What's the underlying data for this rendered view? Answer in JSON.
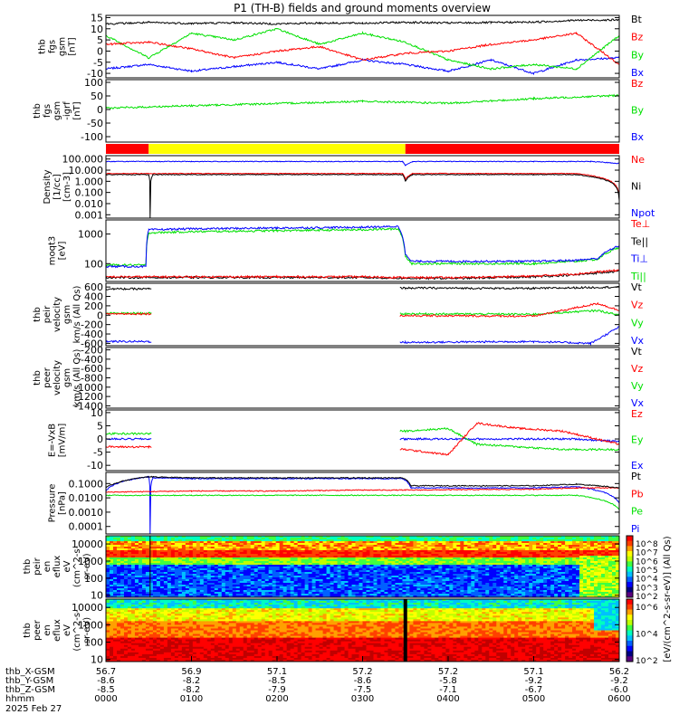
{
  "title": "P1 (TH-B) fields and ground moments overview",
  "colors": {
    "black": "#000000",
    "red": "#ff0000",
    "green": "#00e000",
    "blue": "#0000ff",
    "yellow": "#ffff00",
    "bg": "#ffffff"
  },
  "chart_data": [
    {
      "type": "line",
      "ylabel": [
        "thb",
        "fgs",
        "gsm",
        "[nT]"
      ],
      "ylim": [
        -12,
        16
      ],
      "yticks": [
        "15",
        "10",
        "5",
        "0",
        "-5",
        "-10"
      ],
      "ytick_values": [
        15,
        10,
        5,
        0,
        -5,
        -10
      ],
      "legend": [
        {
          "label": "Bt",
          "color": "#000000"
        },
        {
          "label": "Bz",
          "color": "#ff0000"
        },
        {
          "label": "By",
          "color": "#00e000"
        },
        {
          "label": "Bx",
          "color": "#0000ff"
        }
      ],
      "series": [
        {
          "name": "Bt",
          "color": "#000000",
          "x": [
            0,
            30,
            60,
            90,
            120,
            150,
            180,
            210,
            240,
            270,
            300,
            330,
            360
          ],
          "y": [
            12.2,
            12.8,
            12.4,
            12.7,
            12.2,
            12.6,
            12.5,
            12.9,
            12.6,
            12.8,
            13.0,
            13.8,
            14.0
          ]
        },
        {
          "name": "Bz",
          "color": "#ff0000",
          "x": [
            0,
            30,
            60,
            90,
            120,
            150,
            180,
            210,
            240,
            270,
            300,
            330,
            360
          ],
          "y": [
            3,
            4,
            1,
            -3,
            0,
            2,
            -4,
            -1,
            0,
            3,
            5,
            8,
            -6
          ]
        },
        {
          "name": "By",
          "color": "#00e000",
          "x": [
            0,
            30,
            60,
            90,
            120,
            150,
            180,
            210,
            240,
            270,
            300,
            330,
            360
          ],
          "y": [
            7,
            -3,
            8,
            5,
            10,
            3,
            8,
            4,
            -4,
            -8,
            -6,
            -8,
            7
          ]
        },
        {
          "name": "Bx",
          "color": "#0000ff",
          "x": [
            0,
            30,
            60,
            90,
            120,
            150,
            180,
            210,
            240,
            270,
            300,
            330,
            360
          ],
          "y": [
            -8,
            -6,
            -9,
            -7,
            -5,
            -8,
            -4,
            -6,
            -9,
            -4,
            -10,
            -4,
            -3
          ]
        }
      ]
    },
    {
      "type": "line",
      "ylabel": [
        "thb",
        "fgs",
        "gsm",
        "-igrf",
        "[nT]"
      ],
      "ylim": [
        -120,
        110
      ],
      "yticks": [
        "100",
        "50",
        "0",
        "-50",
        "-100"
      ],
      "ytick_values": [
        100,
        50,
        0,
        -50,
        -100
      ],
      "legend": [
        {
          "label": "Bz",
          "color": "#ff0000"
        },
        {
          "label": "By",
          "color": "#00e000"
        },
        {
          "label": "Bx",
          "color": "#0000ff"
        }
      ],
      "series": [
        {
          "name": "By",
          "color": "#00e000",
          "x": [
            0,
            60,
            120,
            180,
            240,
            300,
            360
          ],
          "y": [
            5,
            14,
            22,
            30,
            23,
            40,
            52
          ]
        }
      ]
    },
    {
      "type": "bar",
      "title": "region bar",
      "x_segments": [
        {
          "start": 0,
          "end": 30,
          "color": "#ff0000"
        },
        {
          "start": 30,
          "end": 210,
          "color": "#ffff00"
        },
        {
          "start": 210,
          "end": 360,
          "color": "#ff0000"
        }
      ]
    },
    {
      "type": "line",
      "log": true,
      "ylabel": [
        "Density",
        "[1/cc]",
        "[cm-3]"
      ],
      "ylim": [
        0.0005,
        200
      ],
      "yticks": [
        "100.000",
        "10.000",
        "1.000",
        "0.100",
        "0.010",
        "0.001"
      ],
      "ytick_values": [
        100,
        10,
        1,
        0.1,
        0.01,
        0.001
      ],
      "legend": [
        {
          "label": "Ne",
          "color": "#ff0000"
        },
        {
          "label": "Ni",
          "color": "#000000"
        },
        {
          "label": "Npot",
          "color": "#0000ff"
        }
      ],
      "series": [
        {
          "name": "Ni",
          "color": "#000000",
          "x": [
            0,
            30,
            31,
            33,
            60,
            120,
            180,
            208,
            210,
            215,
            300,
            330,
            360
          ],
          "y": [
            4,
            4,
            0.0005,
            4,
            4,
            4,
            4,
            4,
            1,
            4,
            4,
            4,
            0.02
          ]
        },
        {
          "name": "Ne",
          "color": "#ff0000",
          "x": [
            0,
            60,
            120,
            180,
            208,
            210,
            215,
            300,
            330,
            360
          ],
          "y": [
            5,
            5,
            5,
            5,
            5,
            1.5,
            5,
            5,
            5,
            0.03
          ]
        },
        {
          "name": "Npot",
          "color": "#0000ff",
          "x": [
            0,
            60,
            120,
            180,
            208,
            210,
            215,
            300,
            340,
            360
          ],
          "y": [
            60,
            60,
            60,
            60,
            60,
            25,
            60,
            60,
            60,
            40
          ]
        }
      ]
    },
    {
      "type": "line",
      "log": true,
      "ylabel": [
        "moqt3",
        "[eV]"
      ],
      "ylim": [
        25,
        3000
      ],
      "yticks": [
        "1000",
        "100"
      ],
      "ytick_values": [
        1000,
        100
      ],
      "legend": [
        {
          "label": "Te⊥",
          "color": "#ff0000"
        },
        {
          "label": "Te||",
          "color": "#000000"
        },
        {
          "label": "Ti⊥",
          "color": "#0000ff"
        },
        {
          "label": "Ti||",
          "color": "#00e000"
        }
      ],
      "series": [
        {
          "name": "Ti⊥",
          "color": "#0000ff",
          "x": [
            0,
            28,
            30,
            60,
            120,
            180,
            205,
            210,
            214,
            300,
            330,
            345,
            360
          ],
          "y": [
            80,
            80,
            1400,
            1500,
            1600,
            1700,
            1800,
            200,
            120,
            120,
            130,
            150,
            400
          ]
        },
        {
          "name": "Ti||",
          "color": "#00e000",
          "x": [
            0,
            28,
            30,
            60,
            120,
            180,
            205,
            210,
            214,
            300,
            330,
            345,
            360
          ],
          "y": [
            90,
            90,
            1100,
            1200,
            1300,
            1400,
            1500,
            180,
            100,
            100,
            120,
            140,
            350
          ]
        },
        {
          "name": "Te⊥",
          "color": "#ff0000",
          "x": [
            0,
            60,
            120,
            180,
            210,
            250,
            300,
            330,
            360
          ],
          "y": [
            36,
            36,
            36,
            36,
            34,
            34,
            38,
            45,
            60
          ]
        },
        {
          "name": "Te||",
          "color": "#000000",
          "x": [
            0,
            60,
            120,
            180,
            210,
            250,
            300,
            330,
            360
          ],
          "y": [
            34,
            34,
            34,
            34,
            32,
            32,
            36,
            42,
            55
          ]
        }
      ]
    },
    {
      "type": "line",
      "ylabel": [
        "thb",
        "peir",
        "velocity",
        "gsm",
        "km/s (All Qs)"
      ],
      "ylim": [
        -650,
        680
      ],
      "yticks": [
        "600",
        "400",
        "200",
        "0",
        "-200",
        "-400",
        "-600"
      ],
      "ytick_values": [
        600,
        400,
        200,
        0,
        -200,
        -400,
        -600
      ],
      "legend": [
        {
          "label": "Vt",
          "color": "#000000"
        },
        {
          "label": "Vz",
          "color": "#ff0000"
        },
        {
          "label": "Vy",
          "color": "#00e000"
        },
        {
          "label": "Vx",
          "color": "#0000ff"
        }
      ],
      "series": [
        {
          "name": "Vt",
          "color": "#000000",
          "x": [
            0,
            30,
            210,
            300,
            360
          ],
          "y": [
            560,
            560,
            580,
            570,
            600
          ]
        },
        {
          "name": "Vz",
          "color": "#ff0000",
          "x": [
            0,
            30,
            210,
            300,
            345,
            360
          ],
          "y": [
            30,
            30,
            -10,
            -20,
            250,
            100
          ]
        },
        {
          "name": "Vy",
          "color": "#00e000",
          "x": [
            0,
            30,
            210,
            300,
            345,
            360
          ],
          "y": [
            40,
            40,
            30,
            20,
            100,
            0
          ]
        },
        {
          "name": "Vx",
          "color": "#0000ff",
          "x": [
            0,
            30,
            210,
            300,
            340,
            360
          ],
          "y": [
            -560,
            -560,
            -580,
            -560,
            -600,
            -250
          ]
        }
      ],
      "gaps": [
        [
          32,
          206
        ]
      ]
    },
    {
      "type": "line",
      "ylabel": [
        "thb",
        "peer",
        "velocity",
        "gsm",
        "km/s (All Qs)"
      ],
      "ylim": [
        -1450,
        -150
      ],
      "yticks": [
        "-200",
        "-400",
        "-600",
        "-800",
        "-1000",
        "-1200",
        "-1400"
      ],
      "ytick_values": [
        -200,
        -400,
        -600,
        -800,
        -1000,
        -1200,
        -1400
      ],
      "legend": [
        {
          "label": "Vt",
          "color": "#000000"
        },
        {
          "label": "Vz",
          "color": "#ff0000"
        },
        {
          "label": "Vy",
          "color": "#00e000"
        },
        {
          "label": "Vx",
          "color": "#0000ff"
        }
      ],
      "series": []
    },
    {
      "type": "line",
      "ylabel": [
        "E=-VxB",
        "[mV/m]"
      ],
      "ylim": [
        -12,
        11
      ],
      "yticks": [
        "10",
        "5",
        "0",
        "-5",
        "-10"
      ],
      "ytick_values": [
        10,
        5,
        0,
        -5,
        -10
      ],
      "legend": [
        {
          "label": "Ez",
          "color": "#ff0000"
        },
        {
          "label": "Ey",
          "color": "#00e000"
        },
        {
          "label": "Ex",
          "color": "#0000ff"
        }
      ],
      "series": [
        {
          "name": "Ez",
          "color": "#ff0000",
          "x": [
            0,
            30,
            210,
            240,
            260,
            290,
            320,
            360
          ],
          "y": [
            -3,
            -3,
            -4,
            -6,
            6,
            4,
            3,
            -2
          ]
        },
        {
          "name": "Ey",
          "color": "#00e000",
          "x": [
            0,
            30,
            210,
            240,
            260,
            290,
            320,
            360
          ],
          "y": [
            2,
            2,
            3,
            4,
            -2,
            -3,
            -4,
            -4
          ]
        },
        {
          "name": "Ex",
          "color": "#0000ff",
          "x": [
            0,
            30,
            210,
            300,
            330,
            360
          ],
          "y": [
            0,
            0,
            0,
            0,
            0,
            -1
          ]
        }
      ],
      "gaps": [
        [
          32,
          206
        ]
      ]
    },
    {
      "type": "line",
      "log": true,
      "ylabel": [
        "Pressure",
        "[nPa]"
      ],
      "ylim": [
        3e-05,
        0.6
      ],
      "yticks": [
        "0.1000",
        "0.0100",
        "0.0010",
        "0.0001"
      ],
      "ytick_values": [
        0.1,
        0.01,
        0.001,
        0.0001
      ],
      "legend": [
        {
          "label": "Pt",
          "color": "#000000"
        },
        {
          "label": "Pb",
          "color": "#ff0000"
        },
        {
          "label": "Pe",
          "color": "#00e000"
        },
        {
          "label": "Pi",
          "color": "#0000ff"
        }
      ],
      "series": [
        {
          "name": "Pt",
          "color": "#000000",
          "x": [
            0,
            30,
            60,
            120,
            180,
            208,
            214,
            300,
            330,
            360
          ],
          "y": [
            0.05,
            0.3,
            0.25,
            0.25,
            0.25,
            0.25,
            0.07,
            0.07,
            0.09,
            0.05
          ]
        },
        {
          "name": "Pb",
          "color": "#ff0000",
          "x": [
            0,
            60,
            120,
            180,
            210,
            300,
            330,
            360
          ],
          "y": [
            0.025,
            0.03,
            0.03,
            0.035,
            0.035,
            0.04,
            0.05,
            0.05
          ]
        },
        {
          "name": "Pe",
          "color": "#00e000",
          "x": [
            0,
            60,
            120,
            180,
            210,
            300,
            330,
            360
          ],
          "y": [
            0.015,
            0.015,
            0.015,
            0.015,
            0.015,
            0.015,
            0.015,
            0.0015
          ]
        },
        {
          "name": "Pi",
          "color": "#0000ff",
          "x": [
            0,
            30,
            31,
            33,
            60,
            120,
            180,
            208,
            214,
            300,
            330,
            360
          ],
          "y": [
            0.03,
            0.3,
            3e-05,
            0.25,
            0.22,
            0.22,
            0.22,
            0.22,
            0.05,
            0.05,
            0.06,
            0.004
          ]
        }
      ]
    },
    {
      "type": "heatmap",
      "ylabel": [
        "thb",
        "peir",
        "en",
        "eflux",
        "eV",
        "(cm^2-s-",
        "sr-eV)"
      ],
      "log": true,
      "yticks": [
        "10000",
        "1000",
        "100",
        "10"
      ],
      "ytick_values": [
        10000,
        1000,
        100,
        10
      ]
    },
    {
      "type": "heatmap",
      "ylabel": [
        "thb",
        "peer",
        "en",
        "eflux",
        "eV",
        "(cm^2-s-",
        "sr-eV)"
      ],
      "log": true,
      "yticks": [
        "10000",
        "1000",
        "100",
        "10"
      ],
      "ytick_values": [
        10000,
        1000,
        100,
        10
      ]
    }
  ],
  "colorbar": {
    "label": "[eV/(cm^2-s-sr-eV)] (All Qs)",
    "ticks_top": [
      "10^8",
      "10^7",
      "10^6",
      "10^5",
      "10^4",
      "10^3",
      "10^2"
    ],
    "ticks_bottom": [
      "10^6",
      "10^4",
      "10^2"
    ]
  },
  "xaxis": {
    "rows": [
      {
        "label": "thb_X-GSM",
        "values": [
          "56.7",
          "56.9",
          "57.1",
          "57.2",
          "57.2",
          "57.1",
          "56.2"
        ]
      },
      {
        "label": "thb_Y-GSM",
        "values": [
          "-8.6",
          "-8.2",
          "-8.5",
          "-8.6",
          "-5.8",
          "-9.2",
          "-9.2"
        ]
      },
      {
        "label": "thb_Z-GSM",
        "values": [
          "-8.5",
          "-8.2",
          "-7.9",
          "-7.5",
          "-7.1",
          "-6.7",
          "-6.0"
        ]
      },
      {
        "label": "hhmm",
        "values": [
          "0000",
          "0100",
          "0200",
          "0300",
          "0400",
          "0500",
          "0600"
        ]
      }
    ],
    "date": "2025 Feb 27",
    "range_min": [
      0,
      360
    ]
  }
}
